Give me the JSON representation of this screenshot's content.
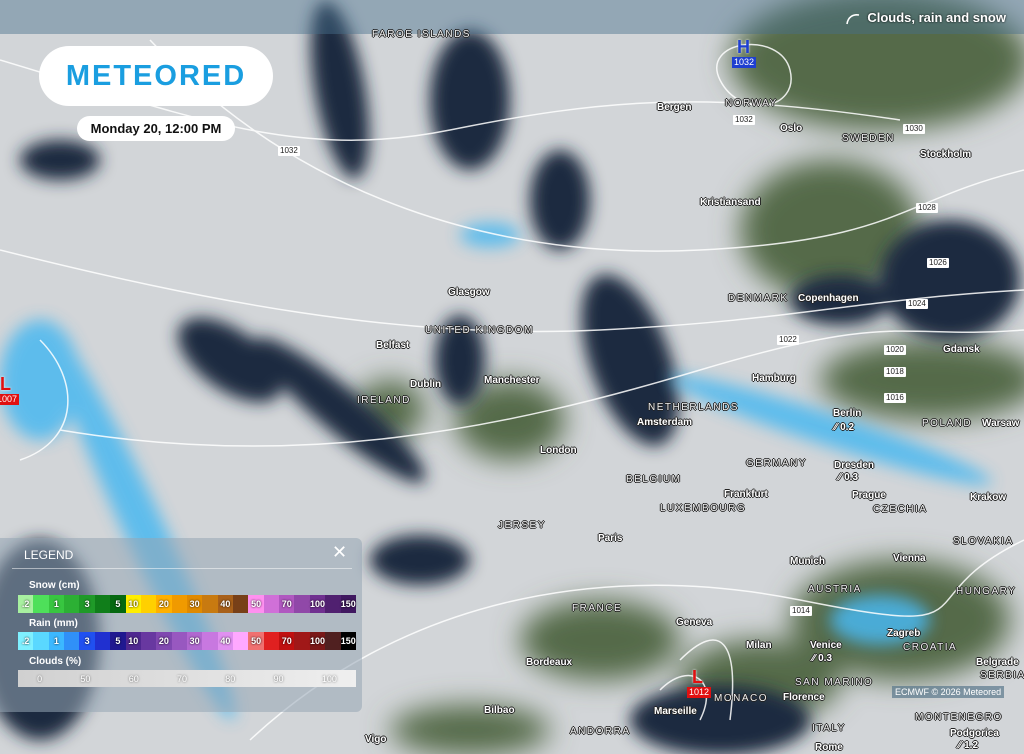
{
  "header": {
    "brand": "METEORED",
    "datetime": "Monday 20, 12:00 PM",
    "layer_label": "Clouds, rain and snow",
    "layer_icon": "cloud-wave-icon"
  },
  "labels": [
    {
      "t": "FAROE ISLANDS",
      "k": "country"
    },
    {
      "t": "Bergen",
      "k": "city"
    },
    {
      "t": "NORWAY",
      "k": "country"
    },
    {
      "t": "Oslo",
      "k": "city"
    },
    {
      "t": "SWEDEN",
      "k": "country"
    },
    {
      "t": "Stockholm",
      "k": "city"
    },
    {
      "t": "Kristiansand",
      "k": "city"
    },
    {
      "t": "Glasgow",
      "k": "city"
    },
    {
      "t": "UNITED KINGDOM",
      "k": "country"
    },
    {
      "t": "Belfast",
      "k": "city"
    },
    {
      "t": "Dublin",
      "k": "city"
    },
    {
      "t": "Manchester",
      "k": "city"
    },
    {
      "t": "IRELAND",
      "k": "country"
    },
    {
      "t": "DENMARK",
      "k": "country"
    },
    {
      "t": "Copenhagen",
      "k": "city"
    },
    {
      "t": "Gdansk",
      "k": "city"
    },
    {
      "t": "Hamburg",
      "k": "city"
    },
    {
      "t": "NETHERLANDS",
      "k": "country"
    },
    {
      "t": "Amsterdam",
      "k": "city"
    },
    {
      "t": "Berlin",
      "k": "city"
    },
    {
      "t": "POLAND",
      "k": "country"
    },
    {
      "t": "Warsaw",
      "k": "city"
    },
    {
      "t": "London",
      "k": "city"
    },
    {
      "t": "GERMANY",
      "k": "country"
    },
    {
      "t": "Dresden",
      "k": "city"
    },
    {
      "t": "BELGIUM",
      "k": "country"
    },
    {
      "t": "Frankfurt",
      "k": "city"
    },
    {
      "t": "Prague",
      "k": "city"
    },
    {
      "t": "CZECHIA",
      "k": "country"
    },
    {
      "t": "Krakow",
      "k": "city"
    },
    {
      "t": "LUXEMBOURG",
      "k": "country"
    },
    {
      "t": "JERSEY",
      "k": "country"
    },
    {
      "t": "Paris",
      "k": "city"
    },
    {
      "t": "SLOVAKIA",
      "k": "country"
    },
    {
      "t": "Vienna",
      "k": "city"
    },
    {
      "t": "Munich",
      "k": "city"
    },
    {
      "t": "AUSTRIA",
      "k": "country"
    },
    {
      "t": "HUNGARY",
      "k": "country"
    },
    {
      "t": "FRANCE",
      "k": "country"
    },
    {
      "t": "Geneva",
      "k": "city"
    },
    {
      "t": "Zagreb",
      "k": "city"
    },
    {
      "t": "CROATIA",
      "k": "country"
    },
    {
      "t": "Milan",
      "k": "city"
    },
    {
      "t": "Venice",
      "k": "city"
    },
    {
      "t": "Belgrade",
      "k": "city"
    },
    {
      "t": "Bordeaux",
      "k": "city"
    },
    {
      "t": "SAN MARINO",
      "k": "country"
    },
    {
      "t": "MONACO",
      "k": "country"
    },
    {
      "t": "Florence",
      "k": "city"
    },
    {
      "t": "Marseille",
      "k": "city"
    },
    {
      "t": "Bilbao",
      "k": "city"
    },
    {
      "t": "ANDORRA",
      "k": "country"
    },
    {
      "t": "ITALY",
      "k": "country"
    },
    {
      "t": "MONTENEGRO",
      "k": "country"
    },
    {
      "t": "Podgorica",
      "k": "city"
    },
    {
      "t": "Rome",
      "k": "city"
    },
    {
      "t": "SERBIA",
      "k": "country"
    },
    {
      "t": "Vigo",
      "k": "city"
    }
  ],
  "precip": [
    "0.2",
    "0.3",
    "0.3",
    "1.2"
  ],
  "isobars": [
    "1032",
    "1032",
    "1030",
    "1028",
    "1026",
    "1024",
    "1022",
    "1020",
    "1018",
    "1016",
    "1014"
  ],
  "pressure_centers": [
    {
      "type": "H",
      "value": "1032",
      "color": "#1e3fd0"
    },
    {
      "type": "L",
      "value": "1007",
      "color": "#e01010"
    },
    {
      "type": "L",
      "value": "1012",
      "color": "#e01010"
    }
  ],
  "legend": {
    "title": "LEGEND",
    "snow_title": "Snow (cm)",
    "snow": [
      [
        ".2",
        "#a8f0a0"
      ],
      [
        "",
        "#4ee05a"
      ],
      [
        "1",
        "#38c640"
      ],
      [
        "",
        "#2cb034"
      ],
      [
        "3",
        "#1f9a28"
      ],
      [
        "",
        "#107e1a"
      ],
      [
        "5",
        "#056810"
      ],
      [
        "10",
        "#ffee00"
      ],
      [
        "",
        "#ffd000"
      ],
      [
        "20",
        "#ffb000"
      ],
      [
        "",
        "#f09a00"
      ],
      [
        "30",
        "#e08a00"
      ],
      [
        "",
        "#c87a10"
      ],
      [
        "40",
        "#a8601a"
      ],
      [
        "",
        "#784018"
      ],
      [
        "50",
        "#ff90f0"
      ],
      [
        "",
        "#d070d8"
      ],
      [
        "70",
        "#b058c0"
      ],
      [
        "",
        "#9048a8"
      ],
      [
        "100",
        "#703090"
      ],
      [
        "",
        "#502070"
      ],
      [
        "150",
        "#401860"
      ]
    ],
    "rain_title": "Rain (mm)",
    "rain": [
      [
        ".2",
        "#7ff0ff"
      ],
      [
        "",
        "#5ad8ff"
      ],
      [
        "1",
        "#3cb8ff"
      ],
      [
        "",
        "#3090f8"
      ],
      [
        "3",
        "#2050f0"
      ],
      [
        "",
        "#2030d0"
      ],
      [
        "5",
        "#201890"
      ],
      [
        "10",
        "#502890"
      ],
      [
        "",
        "#6838a0"
      ],
      [
        "20",
        "#8048b0"
      ],
      [
        "",
        "#9858c0"
      ],
      [
        "30",
        "#b068d0"
      ],
      [
        "",
        "#c878e0"
      ],
      [
        "40",
        "#e090f0"
      ],
      [
        "",
        "#ffa8ff"
      ],
      [
        "50",
        "#f07070"
      ],
      [
        "",
        "#e02020"
      ],
      [
        "70",
        "#c01010"
      ],
      [
        "",
        "#a01818"
      ],
      [
        "100",
        "#7a1818"
      ],
      [
        "",
        "#502020"
      ],
      [
        "150",
        "#000000"
      ]
    ],
    "clouds_title": "Clouds (%)",
    "clouds": [
      "0",
      "50",
      "60",
      "70",
      "80",
      "90",
      "100"
    ]
  },
  "credit": "ECMWF © 2026 Meteored"
}
